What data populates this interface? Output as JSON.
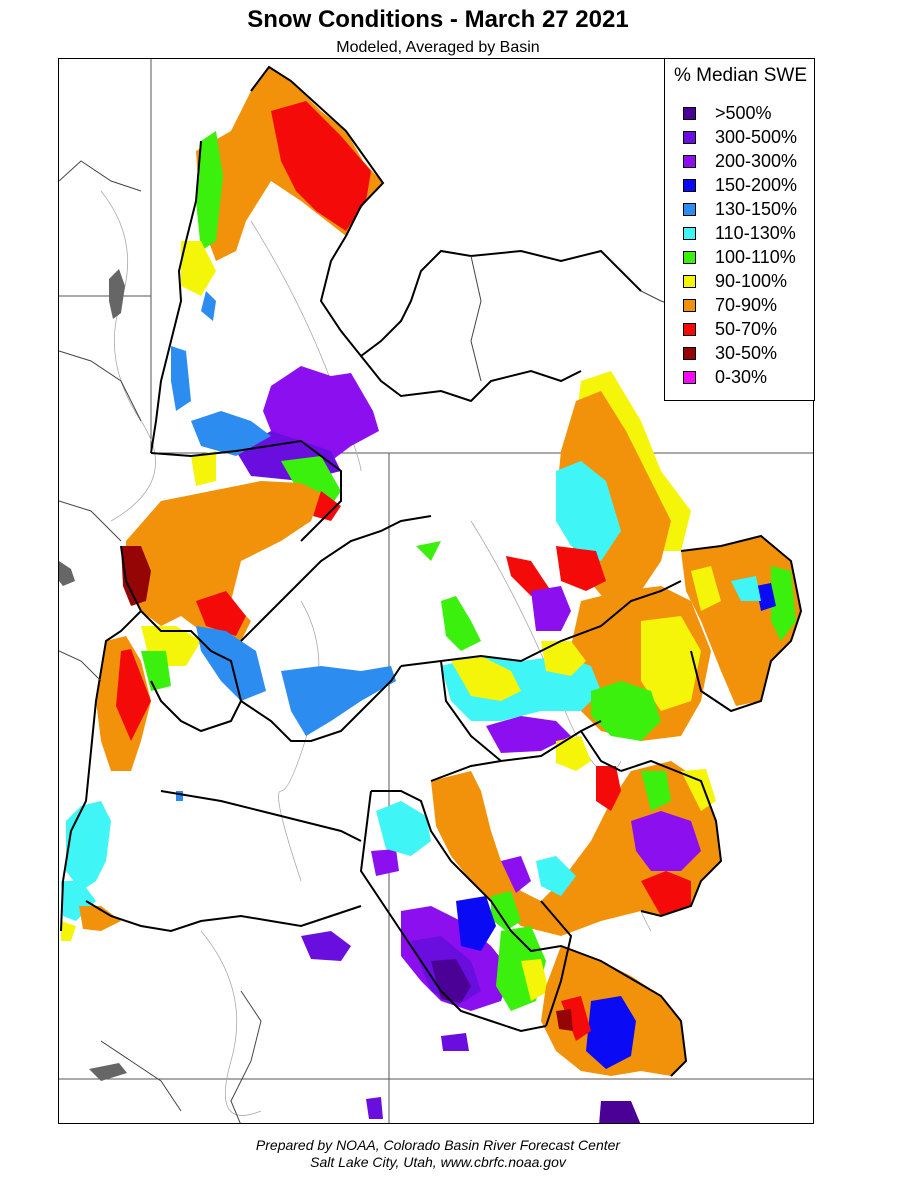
{
  "title": "Snow Conditions - March 27 2021",
  "subtitle": "Modeled, Averaged by Basin",
  "legend": {
    "title": "% Median SWE",
    "items": [
      {
        "label": ">500%",
        "color": "#4b0096"
      },
      {
        "label": "300-500%",
        "color": "#6a0ee0"
      },
      {
        "label": "200-300%",
        "color": "#8c0ff0"
      },
      {
        "label": "150-200%",
        "color": "#0a0af5"
      },
      {
        "label": "130-150%",
        "color": "#2c8cf0"
      },
      {
        "label": "110-130%",
        "color": "#40f5f5"
      },
      {
        "label": "100-110%",
        "color": "#3cf00e"
      },
      {
        "label": "90-100%",
        "color": "#f5f50a"
      },
      {
        "label": "70-90%",
        "color": "#f2920a"
      },
      {
        "label": "50-70%",
        "color": "#f50a0a"
      },
      {
        "label": "30-50%",
        "color": "#960505"
      },
      {
        "label": "0-30%",
        "color": "#f50af5"
      }
    ]
  },
  "footer": {
    "line1": "Prepared by NOAA, Colorado Basin River Forecast Center",
    "line2": "Salt Lake City, Utah, www.cbrfc.noaa.gov"
  }
}
